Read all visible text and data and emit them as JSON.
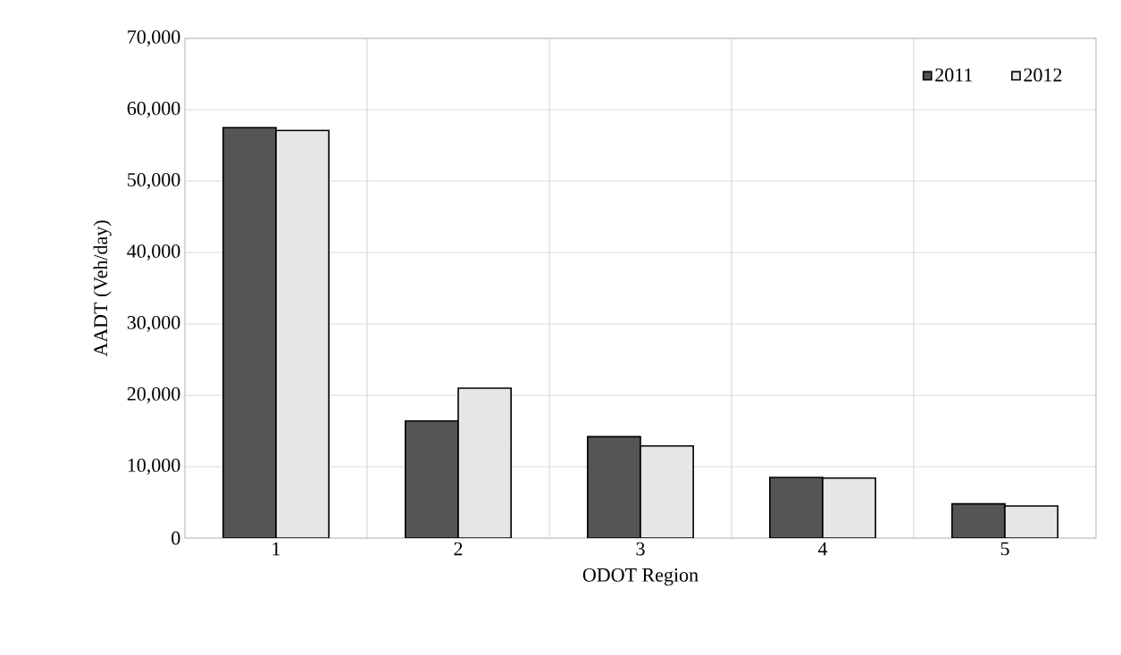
{
  "chart_data": {
    "type": "bar",
    "xlabel": "ODOT Region",
    "ylabel": "AADT (Veh/day)",
    "categories": [
      "1",
      "2",
      "3",
      "4",
      "5"
    ],
    "series": [
      {
        "name": "2011",
        "color": "#555555",
        "values": [
          57500,
          16400,
          14200,
          8500,
          4800
        ]
      },
      {
        "name": "2012",
        "color": "#e6e6e6",
        "values": [
          57100,
          21000,
          12900,
          8400,
          4500
        ]
      }
    ],
    "ylim": [
      0,
      70000
    ],
    "yticks": [
      {
        "value": 0,
        "label": "0"
      },
      {
        "value": 10000,
        "label": "10,000"
      },
      {
        "value": 20000,
        "label": "20,000"
      },
      {
        "value": 30000,
        "label": "30,000"
      },
      {
        "value": 40000,
        "label": "40,000"
      },
      {
        "value": 50000,
        "label": "50,000"
      },
      {
        "value": 60000,
        "label": "60,000"
      },
      {
        "value": 70000,
        "label": "70,000"
      }
    ],
    "grid": true,
    "legend": "top right"
  }
}
